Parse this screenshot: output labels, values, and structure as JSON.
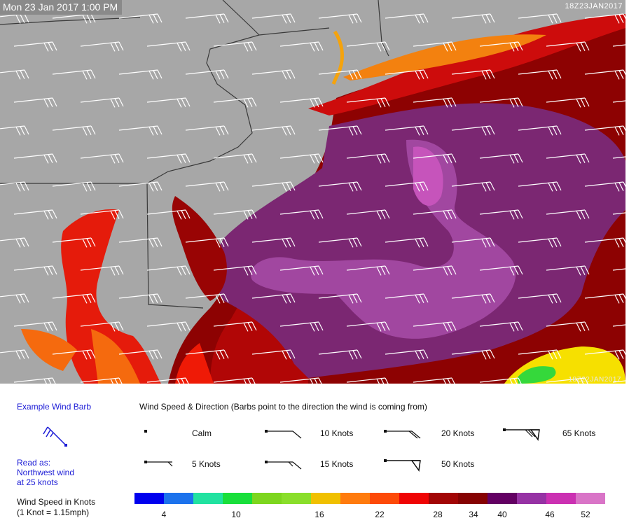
{
  "map": {
    "timestamp": "Mon 23 Jan 2017 1:00 PM",
    "run_id_top": "18Z23JAN2017",
    "run_id_bottom": "18Z22JAN2017",
    "colors": {
      "land": "#a7a7a7",
      "border": "#3a3a3a",
      "barb": "#ffffff"
    }
  },
  "legend": {
    "example_title": "Example Wind Barb",
    "read_as": [
      "Read as:",
      "Northwest wind",
      "at 25 knots"
    ],
    "header": "Wind Speed & Direction (Barbs point to the direction the wind is coming from)",
    "samples": [
      {
        "label": "Calm",
        "knots": 0
      },
      {
        "label": "10 Knots",
        "knots": 10
      },
      {
        "label": "20 Knots",
        "knots": 20
      },
      {
        "label": "65 Knots",
        "knots": 65
      },
      {
        "label": "5 Knots",
        "knots": 5
      },
      {
        "label": "15 Knots",
        "knots": 15
      },
      {
        "label": "50 Knots",
        "knots": 50
      }
    ],
    "scale_title": [
      "Wind Speed in Knots",
      "(1 Knot = 1.15mph)"
    ],
    "scale_colors": [
      "#0000ee",
      "#1c72ec",
      "#21e2a0",
      "#19df3b",
      "#7dd61e",
      "#8ade2b",
      "#f0c000",
      "#ff7b0d",
      "#fd4a08",
      "#ef0404",
      "#a20505",
      "#860202",
      "#630063",
      "#9632a4",
      "#cb30b2",
      "#d974c7"
    ],
    "scale_ticks": [
      "4",
      "10",
      "16",
      "22",
      "28",
      "34",
      "40",
      "46",
      "52"
    ]
  }
}
